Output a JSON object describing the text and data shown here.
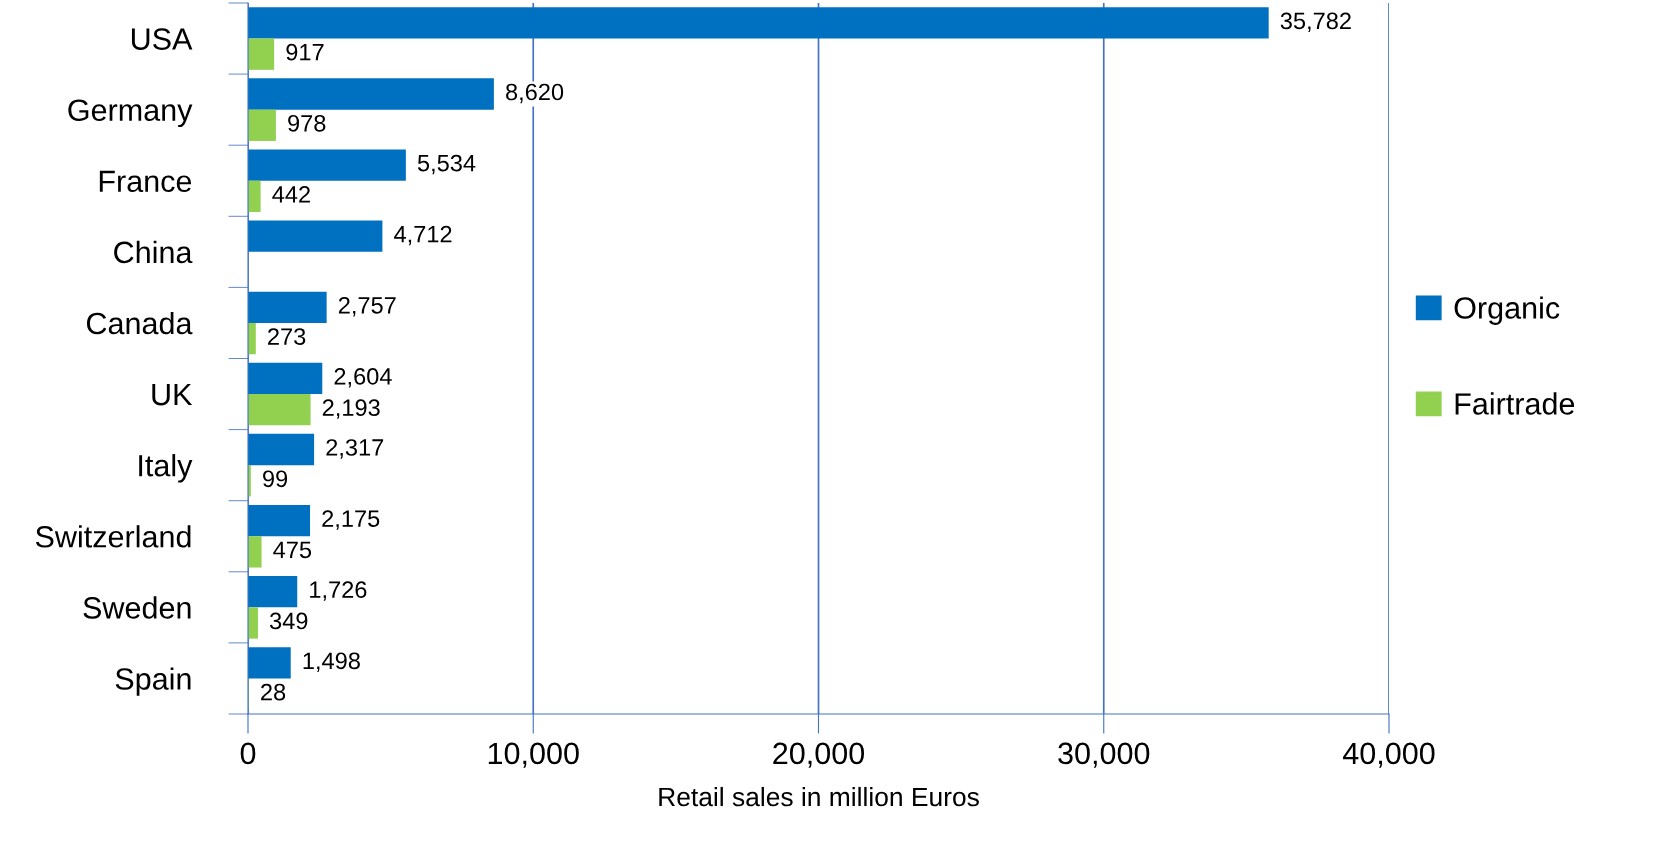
{
  "chart_data": {
    "type": "bar",
    "orientation": "horizontal",
    "categories": [
      "USA",
      "Germany",
      "France",
      "China",
      "Canada",
      "UK",
      "Italy",
      "Switzerland",
      "Sweden",
      "Spain"
    ],
    "series": [
      {
        "name": "Organic",
        "color": "#0070c0",
        "values": [
          35782,
          8620,
          5534,
          4712,
          2757,
          2604,
          2317,
          2175,
          1726,
          1498
        ],
        "value_labels": [
          "35,782",
          "8,620",
          "5,534",
          "4,712",
          "2,757",
          "2,604",
          "2,317",
          "2,175",
          "1,726",
          "1,498"
        ]
      },
      {
        "name": "Fairtrade",
        "color": "#92d050",
        "values": [
          917,
          978,
          442,
          null,
          273,
          2193,
          99,
          475,
          349,
          28
        ],
        "value_labels": [
          "917",
          "978",
          "442",
          null,
          "273",
          "2,193",
          "99",
          "475",
          "349",
          "28"
        ]
      }
    ],
    "xlabel": "Retail sales in million Euros",
    "xlim": [
      0,
      40000
    ],
    "xticks": [
      {
        "value": 0,
        "label": "0"
      },
      {
        "value": 10000,
        "label": "10,000"
      },
      {
        "value": 20000,
        "label": "20,000"
      },
      {
        "value": 30000,
        "label": "30,000"
      },
      {
        "value": 40000,
        "label": "40,000"
      }
    ],
    "grid": "x",
    "legend": "right"
  }
}
